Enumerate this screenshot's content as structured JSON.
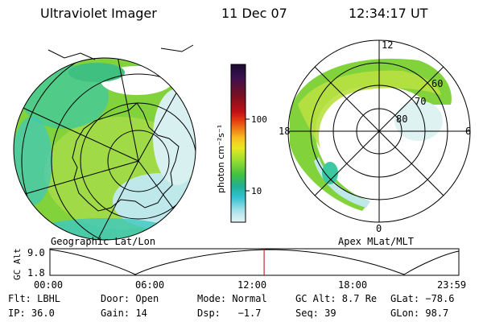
{
  "header": {
    "instrument": "Ultraviolet Imager",
    "date": "11 Dec 07",
    "time": "12:34:17 UT"
  },
  "geo_panel": {
    "caption": "Geographic Lat/Lon"
  },
  "polar_panel": {
    "caption": "Apex MLat/MLT",
    "mlt_labels": {
      "top": "12",
      "left": "18",
      "right": "6",
      "bottom": "0"
    },
    "lat_labels": [
      "60",
      "70",
      "80"
    ]
  },
  "colorbar": {
    "unit_label": "photon cm⁻²s⁻¹",
    "ticks": [
      "100",
      "10"
    ],
    "colors": [
      "#1a0a2e",
      "#3a1050",
      "#7a1020",
      "#c01018",
      "#e84010",
      "#f08818",
      "#f8c020",
      "#e8e820",
      "#a0e030",
      "#40c040",
      "#20b090",
      "#30c0d0",
      "#a0e0e8",
      "#e0f0f0"
    ]
  },
  "altitude_plot": {
    "ylabel": "GC Alt",
    "y_max": "9.0",
    "y_min": "1.8",
    "x_ticks": [
      "00:00",
      "06:00",
      "12:00",
      "18:00",
      "23:59"
    ],
    "current_time_fraction": 0.5238
  },
  "status": {
    "filter": "Flt: LBHL",
    "door": "Door: Open",
    "mode": "Mode: Normal",
    "gc_alt": "GC Alt: 8.7 Re",
    "glat": "GLat: −78.6",
    "ip": "IP: 36.0",
    "gain": "Gain: 14",
    "dsp": "Dsp:   −1.7",
    "seq": "Seq: 39",
    "glon": "GLon: 98.7"
  },
  "palette": {
    "green": "#7ed23a",
    "yellow_green": "#b8e040",
    "cyan": "#3cc8c0",
    "light_cyan": "#bfe8ea",
    "marker_red": "#c00000"
  }
}
